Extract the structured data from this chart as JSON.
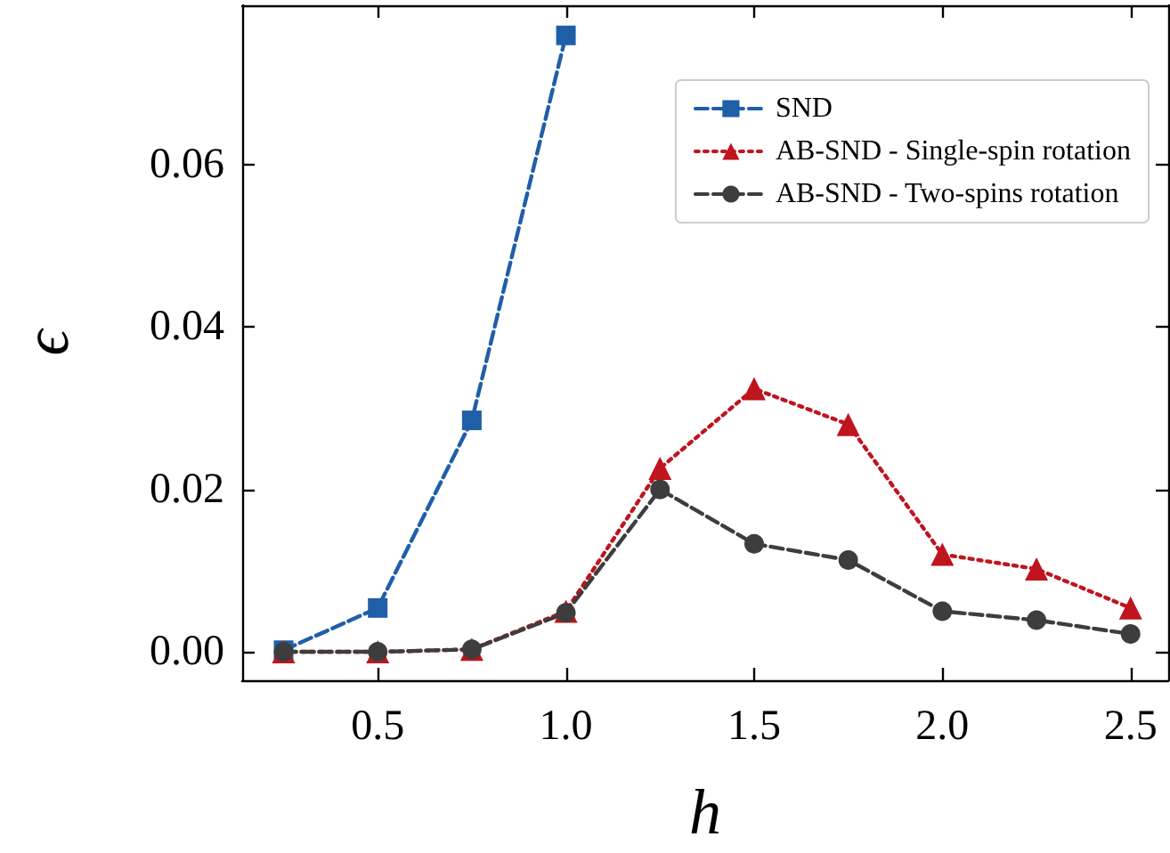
{
  "chart_data": {
    "type": "line",
    "xlabel": "h",
    "ylabel": "ϵ",
    "x": [
      0.25,
      0.5,
      0.75,
      1.0,
      1.25,
      1.5,
      1.75,
      2.0,
      2.25,
      2.5
    ],
    "series": [
      {
        "name": "SND",
        "color": "#1f5fa8",
        "values": [
          0.0002,
          0.0054,
          0.0285,
          0.0759,
          null,
          null,
          null,
          null,
          null,
          null
        ],
        "marker": "square",
        "line_style": "dashed"
      },
      {
        "name": "AB-SND - Single-spin rotation",
        "color": "#c0141e",
        "values": [
          0.0,
          0.0,
          0.0003,
          0.005,
          0.0226,
          0.0324,
          0.028,
          0.012,
          0.0102,
          0.0054
        ],
        "marker": "triangle",
        "line_style": "dotted"
      },
      {
        "name": "AB-SND - Two-spins rotation",
        "color": "#3d3d3d",
        "values": [
          0.0,
          0.0,
          0.0003,
          0.0048,
          0.02,
          0.0133,
          0.0113,
          0.005,
          0.0039,
          0.0022
        ],
        "marker": "circle",
        "line_style": "dashed"
      }
    ],
    "xlim": [
      0.14,
      2.6
    ],
    "ylim": [
      -0.0035,
      0.0796
    ],
    "xticks": [
      {
        "value": 0.5,
        "label": "0.5"
      },
      {
        "value": 1,
        "label": "1.0"
      },
      {
        "value": 1.5,
        "label": "1.5"
      },
      {
        "value": 2,
        "label": "2.0"
      },
      {
        "value": 2.5,
        "label": "2.5"
      }
    ],
    "yticks": [
      {
        "value": 0,
        "label": "0.00"
      },
      {
        "value": 0.02,
        "label": "0.02"
      },
      {
        "value": 0.04,
        "label": "0.04"
      },
      {
        "value": 0.06,
        "label": "0.06"
      }
    ],
    "grid": false,
    "legend": "top right"
  }
}
